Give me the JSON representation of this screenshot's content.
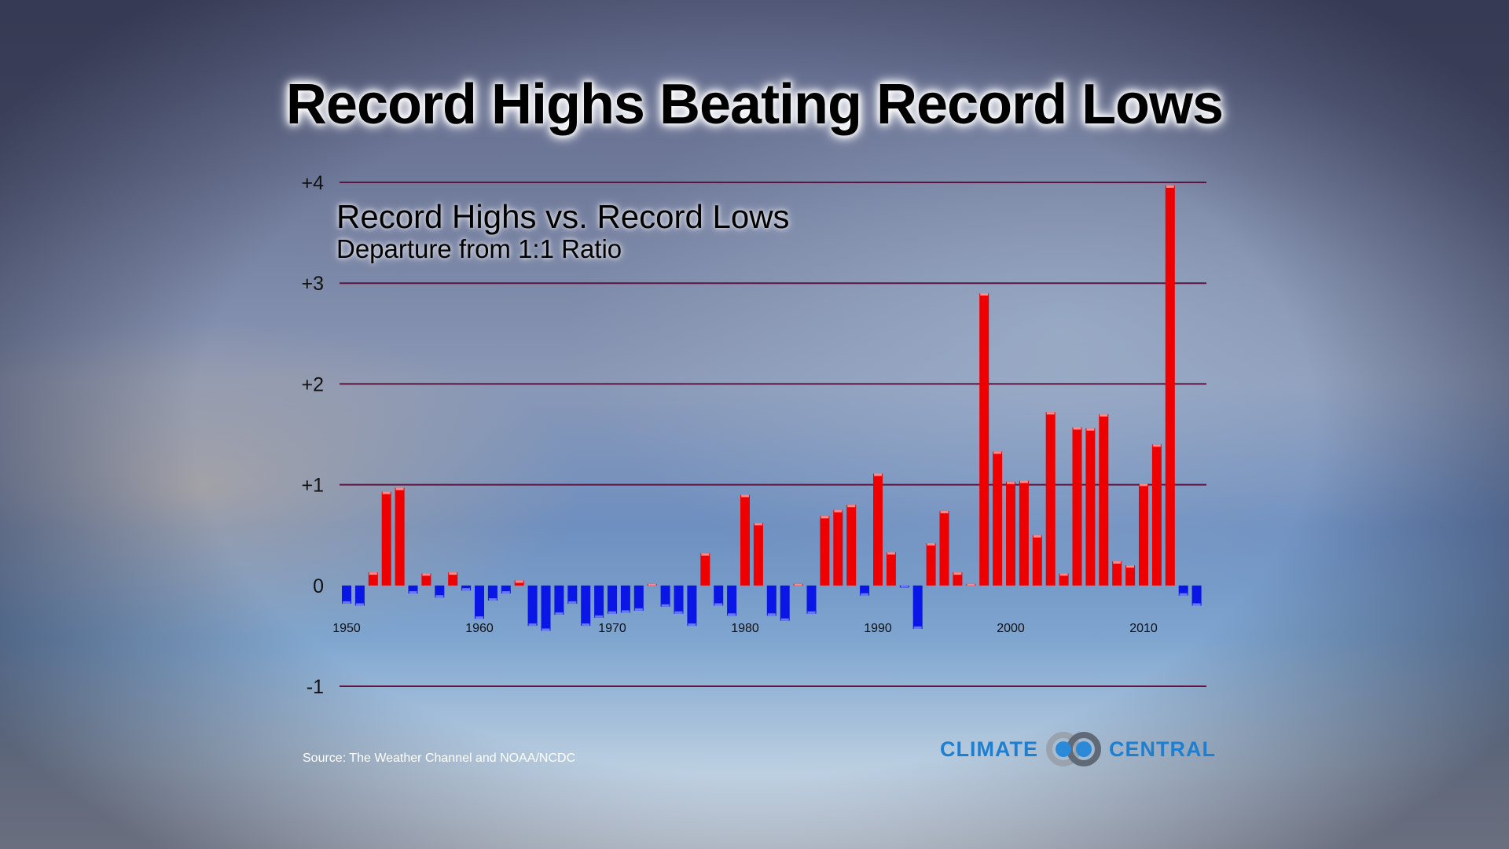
{
  "page": {
    "title": "Record Highs Beating Record Lows",
    "source": "Source: The Weather Channel and NOAA/NCDC",
    "logo_left": "CLIMATE",
    "logo_right": "CENTRAL",
    "logo_icon": "climate-central-rings-icon"
  },
  "chart_data": {
    "type": "bar",
    "title": "Record Highs vs. Record Lows",
    "subtitle": "Departure from 1:1 Ratio",
    "xlabel": "",
    "ylabel": "",
    "ylim": [
      -1,
      4
    ],
    "yticks": [
      4,
      3,
      2,
      1,
      0,
      -1
    ],
    "ytick_labels": [
      "+4",
      "+3",
      "+2",
      "+1",
      "0",
      "-1"
    ],
    "xticks": [
      1950,
      1960,
      1970,
      1980,
      1990,
      2000,
      2010
    ],
    "grid": true,
    "colors": {
      "positive": "#ee0000",
      "negative": "#0a16e6",
      "gridline": "#5a1540"
    },
    "x": [
      1950,
      1951,
      1952,
      1953,
      1954,
      1955,
      1956,
      1957,
      1958,
      1959,
      1960,
      1961,
      1962,
      1963,
      1964,
      1965,
      1966,
      1967,
      1968,
      1969,
      1970,
      1971,
      1972,
      1973,
      1974,
      1975,
      1976,
      1977,
      1978,
      1979,
      1980,
      1981,
      1982,
      1983,
      1984,
      1985,
      1986,
      1987,
      1988,
      1989,
      1990,
      1991,
      1992,
      1993,
      1994,
      1995,
      1996,
      1997,
      1998,
      1999,
      2000,
      2001,
      2002,
      2003,
      2004,
      2005,
      2006,
      2007,
      2008,
      2009,
      2010,
      2011,
      2012,
      2013,
      2014
    ],
    "values": [
      -0.18,
      -0.2,
      0.13,
      0.93,
      0.97,
      -0.08,
      0.12,
      -0.12,
      0.13,
      -0.05,
      -0.33,
      -0.15,
      -0.08,
      0.05,
      -0.4,
      -0.45,
      -0.29,
      -0.18,
      -0.4,
      -0.32,
      -0.28,
      -0.27,
      -0.25,
      0.0,
      -0.21,
      -0.28,
      -0.4,
      0.32,
      -0.2,
      -0.3,
      0.9,
      0.62,
      -0.3,
      -0.35,
      0.0,
      -0.28,
      0.69,
      0.75,
      0.8,
      -0.1,
      1.11,
      0.33,
      -0.02,
      -0.43,
      0.42,
      0.74,
      0.13,
      0.01,
      2.9,
      1.33,
      1.03,
      1.04,
      0.5,
      1.72,
      0.12,
      1.57,
      1.56,
      1.7,
      0.24,
      0.2,
      1.01,
      1.4,
      3.97,
      -0.1,
      -0.2
    ]
  }
}
